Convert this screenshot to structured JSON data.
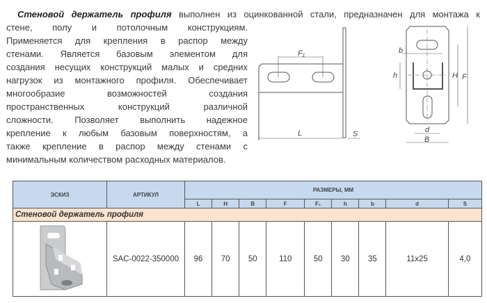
{
  "description": {
    "title": "Стеновой держатель профиля",
    "first_line_rest": "выполнен из оцинкованной стали, предназначен для монтажа к",
    "lines": [
      "стене, полу и потолочным конструкциям.",
      "Применяется для крепления в распор между",
      "стенами. Является базовым элементом для",
      "создания несущих конструкций малых и средних",
      "нагрузок из монтажного профиля. Обеспечивает",
      "многообразие возможностей создания",
      "пространственных конструкций различной",
      "сложности. Позволяет выполнить надежное",
      "крепление к любым базовым поверхностям, а",
      "также крепление в распор между стенами с",
      "минимальным количеством расходных материалов."
    ]
  },
  "drawing": {
    "labels": {
      "F1": "F₁",
      "L": "L",
      "S": "S",
      "b": "b",
      "h": "h",
      "H": "H",
      "F": "F",
      "d": "d",
      "B": "B"
    }
  },
  "table": {
    "header_sketch": "ЭСКИЗ",
    "header_article": "АРТИКУЛ",
    "header_dims": "РАЗМЕРЫ, ММ",
    "dim_columns": [
      "L",
      "H",
      "B",
      "F",
      "F₁",
      "h",
      "b",
      "d",
      "S"
    ],
    "section": "Стеновой держатель профиля",
    "rows": [
      {
        "article": "SAC-0022-350000",
        "values": [
          "96",
          "70",
          "50",
          "110",
          "50",
          "30",
          "35",
          "11x25",
          "4,0"
        ]
      }
    ],
    "colors": {
      "header": "#c6d9ee",
      "section": "#fbe3cf"
    }
  }
}
